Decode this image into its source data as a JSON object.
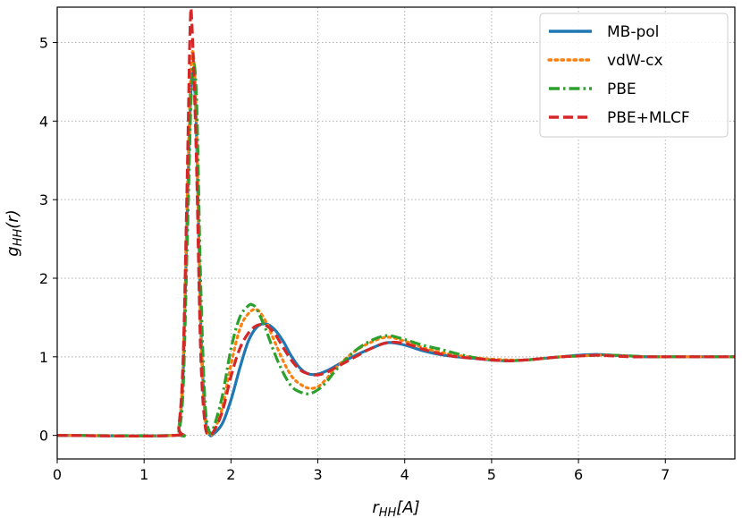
{
  "chart_data": {
    "type": "line",
    "xlabel": "r_{HH}[A]",
    "ylabel": "g_{HH}(r)",
    "xlim": [
      0,
      7.8
    ],
    "ylim": [
      -0.3,
      5.45
    ],
    "xticks": [
      0,
      1,
      2,
      3,
      4,
      5,
      6,
      7
    ],
    "yticks": [
      0,
      1,
      2,
      3,
      4,
      5
    ],
    "xtick_labels": [
      "0",
      "1",
      "2",
      "3",
      "4",
      "5",
      "6",
      "7"
    ],
    "ytick_labels": [
      "0",
      "1",
      "2",
      "3",
      "4",
      "5"
    ],
    "grid": true,
    "legend_position": "top-right",
    "series": [
      {
        "name": "MB-pol",
        "color": "#1f77b4",
        "style": "solid",
        "x": [
          0,
          1.35,
          1.4,
          1.45,
          1.5,
          1.55,
          1.6,
          1.65,
          1.7,
          1.75,
          1.8,
          1.9,
          2.0,
          2.1,
          2.2,
          2.3,
          2.4,
          2.5,
          2.6,
          2.7,
          2.8,
          2.9,
          3.0,
          3.1,
          3.2,
          3.4,
          3.6,
          3.8,
          4.0,
          4.2,
          4.4,
          4.6,
          4.8,
          5.0,
          5.2,
          5.4,
          5.6,
          5.8,
          6.0,
          6.2,
          6.4,
          6.6,
          6.8,
          7.0,
          7.2,
          7.4,
          7.6,
          7.8
        ],
        "y": [
          0,
          0,
          0.1,
          0.8,
          3.0,
          4.6,
          4.0,
          1.5,
          0.3,
          0.02,
          0.02,
          0.15,
          0.45,
          0.85,
          1.2,
          1.38,
          1.42,
          1.35,
          1.2,
          1.0,
          0.85,
          0.78,
          0.78,
          0.82,
          0.88,
          1.0,
          1.1,
          1.18,
          1.15,
          1.08,
          1.03,
          1.0,
          0.98,
          0.96,
          0.95,
          0.96,
          0.98,
          1.0,
          1.02,
          1.03,
          1.02,
          1.01,
          1.0,
          1.0,
          1.0,
          1.0,
          1.0,
          1.0
        ]
      },
      {
        "name": "vdW-cx",
        "color": "#ff7f0e",
        "style": "dotted",
        "x": [
          0,
          1.35,
          1.4,
          1.45,
          1.5,
          1.55,
          1.6,
          1.65,
          1.7,
          1.75,
          1.8,
          1.9,
          2.0,
          2.1,
          2.2,
          2.3,
          2.4,
          2.5,
          2.6,
          2.7,
          2.8,
          2.9,
          3.0,
          3.1,
          3.2,
          3.4,
          3.6,
          3.8,
          4.0,
          4.2,
          4.4,
          4.6,
          4.8,
          5.0,
          5.2,
          5.4,
          5.6,
          5.8,
          6.0,
          6.2,
          6.4,
          6.6,
          6.8,
          7.0,
          7.2,
          7.4,
          7.6,
          7.8
        ],
        "y": [
          0,
          0,
          0.1,
          0.9,
          3.2,
          4.85,
          4.1,
          1.4,
          0.25,
          0.02,
          0.05,
          0.35,
          0.9,
          1.35,
          1.55,
          1.6,
          1.45,
          1.2,
          0.95,
          0.75,
          0.65,
          0.6,
          0.62,
          0.72,
          0.85,
          1.05,
          1.18,
          1.25,
          1.2,
          1.12,
          1.06,
          1.02,
          0.99,
          0.97,
          0.96,
          0.96,
          0.98,
          1.0,
          1.01,
          1.02,
          1.02,
          1.01,
          1.0,
          1.0,
          1.0,
          1.0,
          1.0,
          1.0
        ]
      },
      {
        "name": "PBE",
        "color": "#2ca02c",
        "style": "dashdot",
        "x": [
          0,
          1.35,
          1.4,
          1.45,
          1.5,
          1.55,
          1.6,
          1.65,
          1.7,
          1.75,
          1.8,
          1.9,
          2.0,
          2.1,
          2.2,
          2.25,
          2.3,
          2.4,
          2.5,
          2.6,
          2.7,
          2.8,
          2.9,
          3.0,
          3.1,
          3.2,
          3.4,
          3.6,
          3.8,
          4.0,
          4.2,
          4.4,
          4.6,
          4.8,
          5.0,
          5.2,
          5.4,
          5.6,
          5.8,
          6.0,
          6.2,
          6.4,
          6.6,
          6.8,
          7.0,
          7.2,
          7.4,
          7.6,
          7.8
        ],
        "y": [
          0,
          0,
          0.05,
          0.6,
          2.6,
          4.5,
          4.4,
          2.0,
          0.45,
          0.05,
          0.1,
          0.5,
          1.1,
          1.5,
          1.65,
          1.66,
          1.6,
          1.35,
          1.05,
          0.8,
          0.62,
          0.55,
          0.53,
          0.58,
          0.68,
          0.82,
          1.05,
          1.2,
          1.27,
          1.22,
          1.15,
          1.1,
          1.04,
          0.99,
          0.96,
          0.95,
          0.96,
          0.98,
          1.0,
          1.01,
          1.02,
          1.02,
          1.01,
          1.0,
          1.0,
          1.0,
          1.0,
          1.0,
          1.0
        ]
      },
      {
        "name": "PBE+MLCF",
        "color": "#d62728",
        "style": "dashed",
        "x": [
          0,
          1.35,
          1.4,
          1.45,
          1.5,
          1.53,
          1.55,
          1.6,
          1.65,
          1.7,
          1.75,
          1.8,
          1.9,
          2.0,
          2.1,
          2.2,
          2.3,
          2.4,
          2.5,
          2.6,
          2.7,
          2.8,
          2.9,
          3.0,
          3.1,
          3.2,
          3.4,
          3.6,
          3.8,
          4.0,
          4.2,
          4.4,
          4.6,
          4.8,
          5.0,
          5.2,
          5.4,
          5.6,
          5.8,
          6.0,
          6.2,
          6.4,
          6.6,
          6.8,
          7.0,
          7.2,
          7.4,
          7.6,
          7.8
        ],
        "y": [
          0,
          0,
          0.12,
          1.0,
          3.5,
          5.2,
          5.25,
          3.6,
          1.1,
          0.15,
          0.02,
          0.05,
          0.3,
          0.75,
          1.1,
          1.3,
          1.4,
          1.4,
          1.3,
          1.12,
          0.95,
          0.83,
          0.78,
          0.77,
          0.8,
          0.86,
          0.98,
          1.1,
          1.18,
          1.17,
          1.1,
          1.04,
          1.0,
          0.98,
          0.96,
          0.95,
          0.96,
          0.98,
          1.0,
          1.01,
          1.02,
          1.01,
          1.0,
          1.0,
          1.0,
          1.0,
          1.0,
          1.0,
          1.0
        ]
      }
    ]
  }
}
